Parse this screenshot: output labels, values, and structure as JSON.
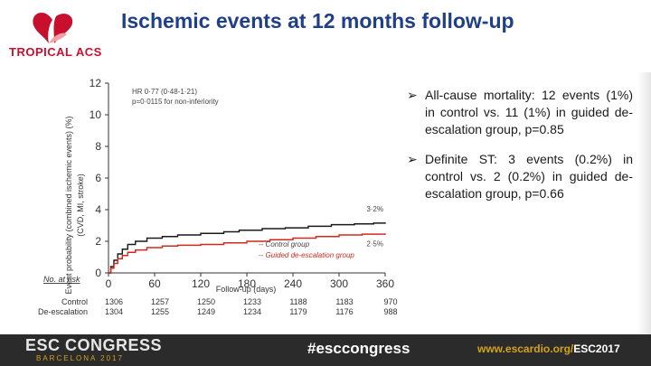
{
  "slide": {
    "title": "Ischemic events at 12 months follow-up",
    "logo_text": "TROPICAL ACS",
    "bullets": [
      "All-cause mortality: 12 events (1%) in control vs. 11 (1%) in guided de-escalation group, p=0.85",
      "Definite ST: 3 events (0.2%) in control vs. 2 (0.2%) in guided de-escalation group, p=0.66"
    ]
  },
  "footer": {
    "left": "ESC CONGRESS",
    "city": "BARCELONA 2017",
    "mid": "#esccongress",
    "right_prefix": "www.escardio.org/",
    "right_bold": "ESC2017"
  },
  "chart_data": {
    "type": "line",
    "ylabel": "Event probability (combined ischemic events) (%)",
    "ylabel2": "(CVD, MI, stroke)",
    "xlabel": "Follow-up (days)",
    "xlim": [
      0,
      360
    ],
    "ylim": [
      0,
      12
    ],
    "x_ticks": [
      "0",
      "60",
      "120",
      "180",
      "240",
      "300",
      "360"
    ],
    "y_ticks": [
      "0",
      "2",
      "4",
      "6",
      "8",
      "10",
      "12"
    ],
    "annotation_line1": "HR 0·77 (0·48-1·21)",
    "annotation_line2": "p=0·0115 for non-inferiority",
    "series": [
      {
        "name": "Control group",
        "color": "#1a1a1a",
        "end_label": "3·2%",
        "points": [
          [
            0,
            0
          ],
          [
            3,
            0.4
          ],
          [
            7,
            0.8
          ],
          [
            12,
            1.2
          ],
          [
            18,
            1.5
          ],
          [
            25,
            1.8
          ],
          [
            35,
            2.0
          ],
          [
            50,
            2.2
          ],
          [
            70,
            2.3
          ],
          [
            90,
            2.4
          ],
          [
            120,
            2.5
          ],
          [
            150,
            2.6
          ],
          [
            170,
            2.7
          ],
          [
            200,
            2.8
          ],
          [
            230,
            2.85
          ],
          [
            260,
            2.95
          ],
          [
            290,
            3.05
          ],
          [
            320,
            3.1
          ],
          [
            345,
            3.15
          ],
          [
            360,
            3.2
          ]
        ]
      },
      {
        "name": "Guided de-escalation group",
        "color": "#d02a1e",
        "end_label": "2·5%",
        "points": [
          [
            0,
            0
          ],
          [
            3,
            0.3
          ],
          [
            7,
            0.6
          ],
          [
            12,
            0.9
          ],
          [
            18,
            1.1
          ],
          [
            25,
            1.3
          ],
          [
            35,
            1.45
          ],
          [
            50,
            1.6
          ],
          [
            70,
            1.7
          ],
          [
            90,
            1.75
          ],
          [
            120,
            1.8
          ],
          [
            150,
            1.9
          ],
          [
            180,
            2.0
          ],
          [
            210,
            2.1
          ],
          [
            240,
            2.2
          ],
          [
            270,
            2.3
          ],
          [
            300,
            2.4
          ],
          [
            330,
            2.45
          ],
          [
            360,
            2.5
          ]
        ]
      }
    ],
    "legend": [
      "-- Control group",
      "-- Guided de-escalation group"
    ],
    "risk_table": {
      "title": "No. at risk",
      "rows": [
        {
          "label": "Control",
          "values": [
            "1306",
            "1257",
            "1250",
            "1233",
            "1188",
            "1183",
            "970"
          ]
        },
        {
          "label": "De-escalation",
          "values": [
            "1304",
            "1255",
            "1249",
            "1234",
            "1179",
            "1176",
            "988"
          ]
        }
      ]
    }
  }
}
